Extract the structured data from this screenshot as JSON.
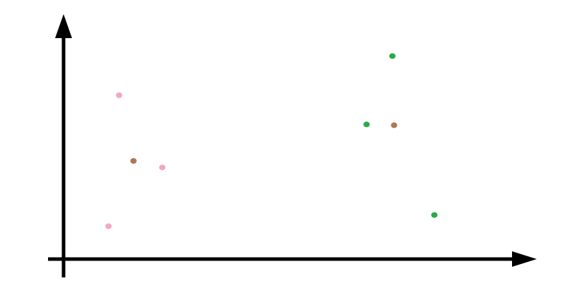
{
  "chart_data": {
    "type": "scatter",
    "title": "",
    "xlabel": "",
    "ylabel": "",
    "xlim": [
      0,
      100
    ],
    "ylim": [
      0,
      100
    ],
    "grid": false,
    "legend": "none",
    "series": [
      {
        "color": "#f4a6c3",
        "points": [
          {
            "x": 13.1,
            "y": 80.3
          },
          {
            "x": 23.3,
            "y": 44.9
          },
          {
            "x": 10.6,
            "y": 16.1
          }
        ]
      },
      {
        "color": "#ad7953",
        "points": [
          {
            "x": 16.5,
            "y": 48.1
          },
          {
            "x": 78.0,
            "y": 65.6
          }
        ]
      },
      {
        "color": "#2aaa4a",
        "points": [
          {
            "x": 77.6,
            "y": 99.5
          },
          {
            "x": 71.5,
            "y": 66.0
          },
          {
            "x": 87.5,
            "y": 21.6
          }
        ]
      }
    ]
  }
}
